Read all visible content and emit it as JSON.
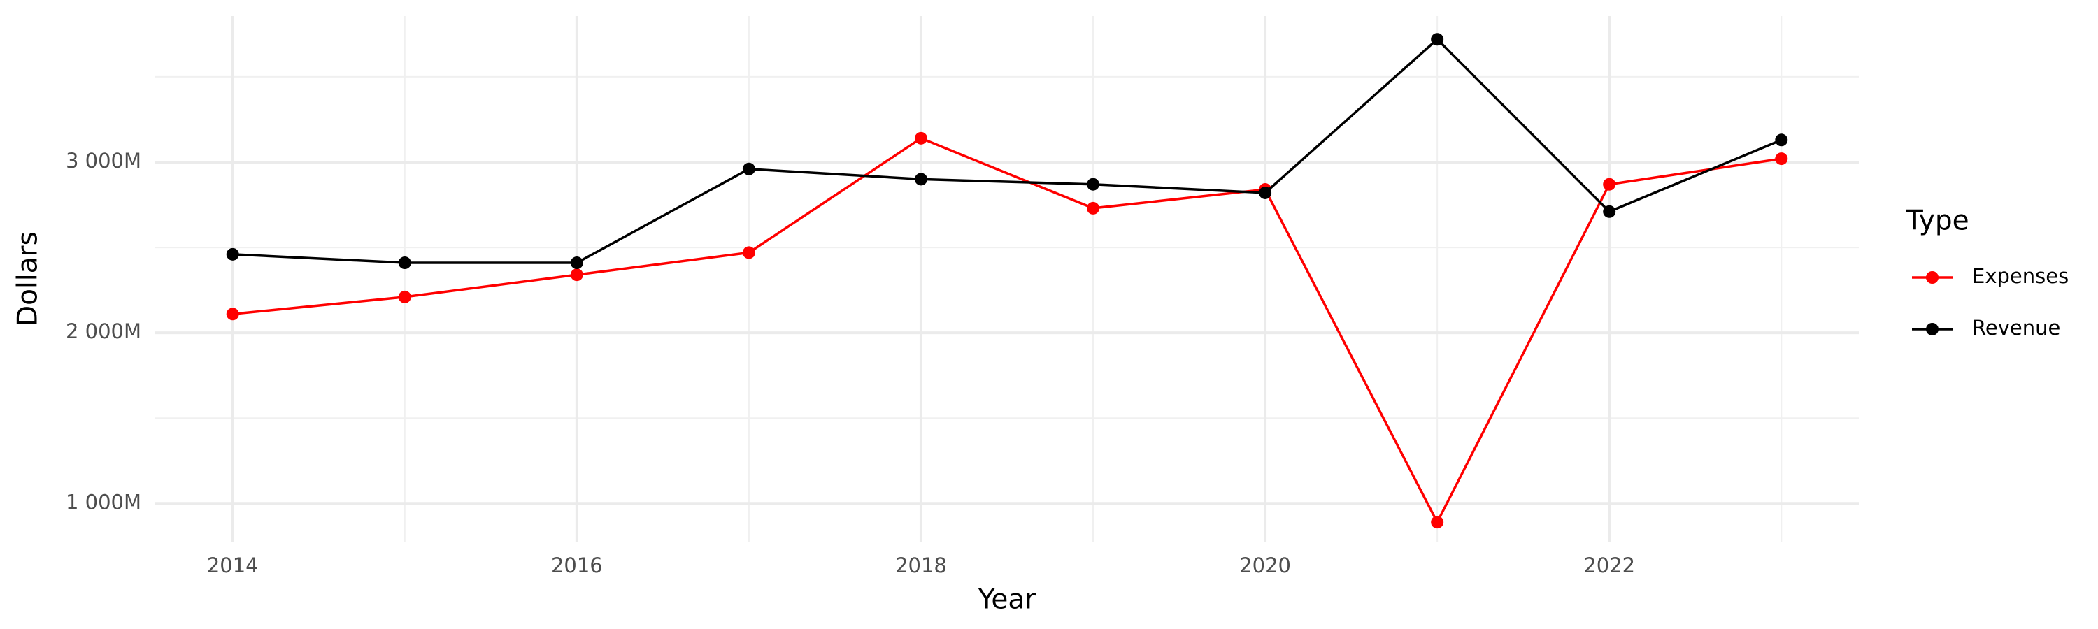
{
  "chart_data": {
    "type": "line",
    "x_label": "Year",
    "y_label": "Dollars",
    "legend_title": "Type",
    "x": [
      2014,
      2015,
      2016,
      2017,
      2018,
      2019,
      2020,
      2021,
      2022,
      2023
    ],
    "series": [
      {
        "name": "Expenses",
        "color": "#ff0000",
        "values": [
          2110000000,
          2210000000,
          2340000000,
          2470000000,
          3140000000,
          2730000000,
          2840000000,
          890000000,
          2870000000,
          3020000000
        ]
      },
      {
        "name": "Revenue",
        "color": "#000000",
        "values": [
          2460000000,
          2410000000,
          2410000000,
          2960000000,
          2900000000,
          2870000000,
          2820000000,
          3720000000,
          2710000000,
          3130000000
        ]
      }
    ],
    "xlim": [
      2013.55,
      2023.45
    ],
    "xticks": [
      2014,
      2016,
      2018,
      2020,
      2022
    ],
    "ylim": [
      776000000,
      3856000000
    ],
    "yticks": [
      {
        "value": 1000000000,
        "label": "1 000M"
      },
      {
        "value": 2000000000,
        "label": "2 000M"
      },
      {
        "value": 3000000000,
        "label": "3 000M"
      }
    ],
    "grid": true,
    "legend": "right"
  }
}
